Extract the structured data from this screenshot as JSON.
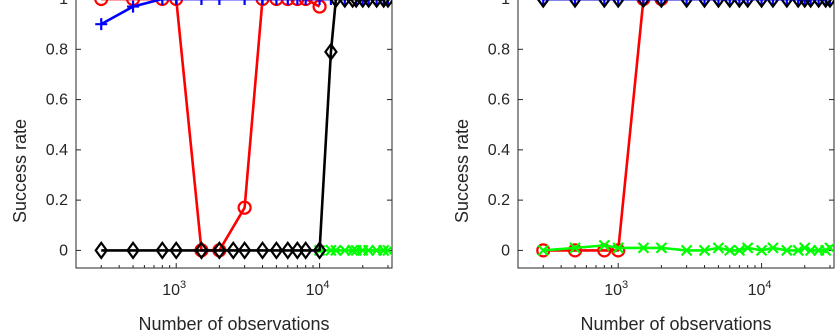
{
  "chart_data": [
    {
      "type": "line",
      "xscale": "log",
      "xlabel": "Number of observations",
      "ylabel": "Success rate",
      "xlim": [
        200,
        32000
      ],
      "ylim": [
        -0.07,
        1.02
      ],
      "xticks": [
        {
          "base": "10",
          "exp": "3",
          "value": 1000
        },
        {
          "base": "10",
          "exp": "4",
          "value": 10000
        }
      ],
      "yticks": [
        "0",
        "0.2",
        "0.4",
        "0.6",
        "0.8",
        "1"
      ],
      "grid": false,
      "series": [
        {
          "color": "#ff0000",
          "marker": "circle",
          "x": [
            300,
            500,
            800,
            1000,
            1500,
            2000,
            3000,
            4000,
            5000,
            6000,
            7000,
            8000,
            10000
          ],
          "y": [
            1,
            1,
            1,
            1,
            0,
            0,
            0.17,
            1,
            1,
            1,
            1,
            1,
            0.97
          ]
        },
        {
          "color": "#0000ff",
          "marker": "plus",
          "x": [
            300,
            500,
            800,
            1000,
            1500,
            2000,
            3000,
            4000,
            5000,
            6000,
            7000,
            8000,
            10000,
            12000,
            15000,
            18000,
            20000,
            22000,
            25000,
            28000,
            30000
          ],
          "y": [
            0.9,
            0.97,
            1,
            1,
            1,
            1,
            1,
            1,
            1,
            1,
            1,
            1,
            1,
            1,
            1,
            1,
            1,
            1,
            1,
            1,
            1
          ]
        },
        {
          "color": "#00ff00",
          "marker": "x",
          "x": [
            10000,
            12000,
            13000,
            15000,
            17000,
            18000,
            20000,
            22000,
            25000,
            28000,
            30000
          ],
          "y": [
            0,
            0,
            0,
            0,
            0,
            0,
            0,
            0,
            0,
            0,
            0
          ]
        },
        {
          "color": "#000000",
          "marker": "diamond",
          "x": [
            300,
            500,
            800,
            1000,
            1500,
            2000,
            2500,
            3000,
            4000,
            5000,
            6000,
            7000,
            8000,
            10000,
            12000,
            13000,
            15000,
            17000,
            18000,
            20000,
            22000,
            25000,
            28000,
            30000
          ],
          "y": [
            0,
            0,
            0,
            0,
            0,
            0,
            0,
            0,
            0,
            0,
            0,
            0,
            0,
            0,
            0.79,
            1,
            1,
            1,
            1,
            1,
            1,
            1,
            1,
            1
          ]
        }
      ]
    },
    {
      "type": "line",
      "xscale": "log",
      "xlabel": "Number of observations",
      "ylabel": "Success rate",
      "xlim": [
        200,
        32000
      ],
      "ylim": [
        -0.07,
        1.02
      ],
      "xticks": [
        {
          "base": "10",
          "exp": "3",
          "value": 1000
        },
        {
          "base": "10",
          "exp": "4",
          "value": 10000
        }
      ],
      "yticks": [
        "0",
        "0.2",
        "0.4",
        "0.6",
        "0.8",
        "1"
      ],
      "grid": false,
      "series": [
        {
          "color": "#ff0000",
          "marker": "circle",
          "x": [
            300,
            500,
            800,
            1000,
            1500,
            2000
          ],
          "y": [
            0,
            0,
            0,
            0,
            1,
            1
          ]
        },
        {
          "color": "#00ff00",
          "marker": "x",
          "x": [
            300,
            500,
            800,
            1000,
            1500,
            2000,
            3000,
            4000,
            5000,
            6000,
            7000,
            8000,
            10000,
            12000,
            15000,
            18000,
            20000,
            22000,
            25000,
            28000,
            30000
          ],
          "y": [
            0,
            0.01,
            0.02,
            0.01,
            0.01,
            0.01,
            0,
            0,
            0.01,
            0,
            0,
            0.01,
            0,
            0.01,
            0,
            0,
            0.01,
            0,
            0,
            0,
            0.01
          ]
        },
        {
          "color": "#0000ff",
          "marker": "plus",
          "x": [
            300,
            500,
            800,
            1000,
            1500,
            2000,
            3000,
            4000,
            5000,
            6000,
            7000,
            8000,
            10000,
            12000,
            15000,
            18000,
            20000,
            22000,
            25000,
            28000,
            30000
          ],
          "y": [
            1,
            1,
            1,
            1,
            1,
            1,
            1,
            1,
            1,
            1,
            1,
            1,
            1,
            1,
            1,
            1,
            1,
            1,
            1,
            1,
            1
          ]
        },
        {
          "color": "#000000",
          "marker": "diamond",
          "x": [
            300,
            500,
            800,
            1000,
            1500,
            2000,
            3000,
            4000,
            5000,
            6000,
            7000,
            8000,
            10000,
            12000,
            15000,
            18000,
            20000,
            22000,
            25000,
            28000,
            30000
          ],
          "y": [
            1,
            1,
            1,
            1,
            1,
            1,
            1,
            1,
            1,
            1,
            1,
            1,
            1,
            1,
            1,
            1,
            1,
            1,
            1,
            1,
            1
          ]
        },
        {
          "color": "#0000ff",
          "marker": "none",
          "x": [
            300,
            30000
          ],
          "y": [
            1,
            1
          ]
        }
      ]
    }
  ]
}
